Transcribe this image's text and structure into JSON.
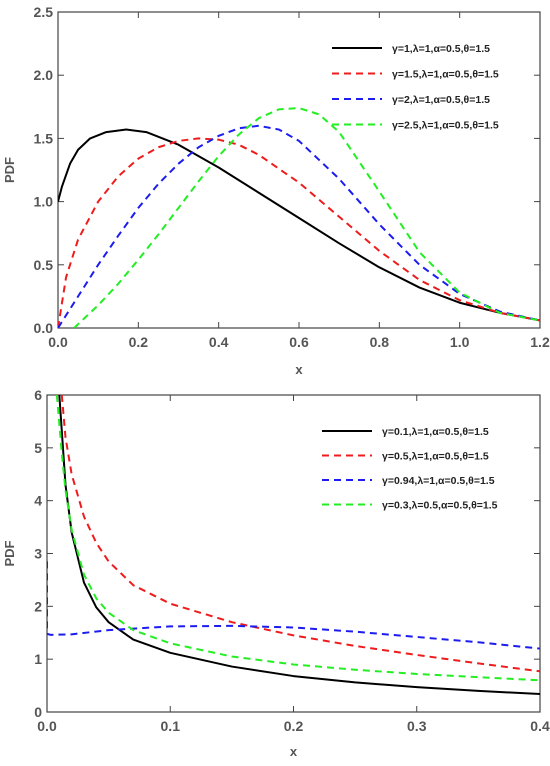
{
  "chart_data": [
    {
      "type": "line",
      "title": "",
      "xlabel": "x",
      "ylabel": "PDF",
      "xlim": [
        0,
        1.2
      ],
      "ylim": [
        0,
        2.5
      ],
      "xticks": [
        0.0,
        0.2,
        0.4,
        0.6,
        0.8,
        1.0,
        1.2
      ],
      "xtick_labels": [
        "0.0",
        "0.2",
        "0.4",
        "0.6",
        "0.8",
        "1.0",
        "1.2"
      ],
      "yticks": [
        0.0,
        0.5,
        1.0,
        1.5,
        2.0,
        2.5
      ],
      "ytick_labels": [
        "0.0",
        "0.5",
        "1.0",
        "1.5",
        "2.0",
        "2.5"
      ],
      "grid": false,
      "legend_position": "top-right",
      "series": [
        {
          "name": "γ=1,λ=1,α=0.5,θ=1.5",
          "color": "#000000",
          "dash": "solid",
          "x": [
            0.0,
            0.01,
            0.03,
            0.05,
            0.08,
            0.12,
            0.17,
            0.22,
            0.3,
            0.4,
            0.5,
            0.6,
            0.7,
            0.8,
            0.9,
            1.0,
            1.1,
            1.2
          ],
          "y": [
            1.0,
            1.12,
            1.3,
            1.41,
            1.5,
            1.55,
            1.57,
            1.55,
            1.45,
            1.27,
            1.07,
            0.87,
            0.67,
            0.48,
            0.32,
            0.2,
            0.12,
            0.06
          ]
        },
        {
          "name": "γ=1.5,λ=1,α=0.5,θ=1.5",
          "color": "#ee1c1c",
          "dash": "dashed",
          "x": [
            0.0,
            0.02,
            0.05,
            0.1,
            0.15,
            0.2,
            0.25,
            0.3,
            0.35,
            0.4,
            0.45,
            0.5,
            0.6,
            0.7,
            0.8,
            0.9,
            1.0,
            1.1,
            1.2
          ],
          "y": [
            0.0,
            0.4,
            0.7,
            1.0,
            1.2,
            1.34,
            1.43,
            1.48,
            1.5,
            1.49,
            1.45,
            1.37,
            1.15,
            0.88,
            0.61,
            0.38,
            0.22,
            0.12,
            0.06
          ]
        },
        {
          "name": "γ=2,λ=1,α=0.5,θ=1.5",
          "color": "#1c1cee",
          "dash": "dashed",
          "x": [
            0.0,
            0.05,
            0.1,
            0.15,
            0.2,
            0.25,
            0.3,
            0.35,
            0.4,
            0.45,
            0.5,
            0.55,
            0.6,
            0.7,
            0.8,
            0.9,
            1.0,
            1.1,
            1.2
          ],
          "y": [
            0.0,
            0.25,
            0.5,
            0.73,
            0.95,
            1.14,
            1.3,
            1.43,
            1.52,
            1.58,
            1.6,
            1.57,
            1.48,
            1.18,
            0.82,
            0.5,
            0.27,
            0.13,
            0.06
          ]
        },
        {
          "name": "γ=2.5,λ=1,α=0.5,θ=1.5",
          "color": "#22ee22",
          "dash": "dashed",
          "x": [
            0.04,
            0.1,
            0.15,
            0.2,
            0.25,
            0.3,
            0.35,
            0.4,
            0.45,
            0.5,
            0.55,
            0.6,
            0.65,
            0.7,
            0.8,
            0.9,
            1.0,
            1.1,
            1.2
          ],
          "y": [
            0.0,
            0.18,
            0.35,
            0.54,
            0.74,
            0.95,
            1.16,
            1.36,
            1.53,
            1.66,
            1.73,
            1.74,
            1.69,
            1.55,
            1.08,
            0.6,
            0.28,
            0.12,
            0.06
          ]
        }
      ]
    },
    {
      "type": "line",
      "title": "",
      "xlabel": "x",
      "ylabel": "PDF",
      "xlim": [
        0,
        0.4
      ],
      "ylim": [
        0,
        6
      ],
      "xticks": [
        0.0,
        0.1,
        0.2,
        0.3,
        0.4
      ],
      "xtick_labels": [
        "0.0",
        "0.1",
        "0.2",
        "0.3",
        "0.4"
      ],
      "yticks": [
        0,
        1,
        2,
        3,
        4,
        5,
        6
      ],
      "ytick_labels": [
        "0",
        "1",
        "2",
        "3",
        "4",
        "5",
        "6"
      ],
      "grid": false,
      "legend_position": "top-right",
      "series": [
        {
          "name": "γ=0.1,λ=1,α=0.5,θ=1.5",
          "color": "#000000",
          "dash": "solid",
          "x": [
            0.01,
            0.015,
            0.02,
            0.03,
            0.04,
            0.05,
            0.07,
            0.1,
            0.15,
            0.2,
            0.25,
            0.3,
            0.35,
            0.4
          ],
          "y": [
            6.0,
            4.3,
            3.4,
            2.45,
            1.98,
            1.7,
            1.37,
            1.12,
            0.86,
            0.68,
            0.56,
            0.47,
            0.4,
            0.34
          ]
        },
        {
          "name": "γ=0.5,λ=1,α=0.5,θ=1.5",
          "color": "#ee1c1c",
          "dash": "dashed",
          "x": [
            0.012,
            0.015,
            0.02,
            0.03,
            0.04,
            0.05,
            0.07,
            0.1,
            0.15,
            0.2,
            0.25,
            0.3,
            0.35,
            0.4
          ],
          "y": [
            6.0,
            5.2,
            4.5,
            3.7,
            3.2,
            2.85,
            2.4,
            2.05,
            1.7,
            1.45,
            1.25,
            1.08,
            0.92,
            0.77
          ]
        },
        {
          "name": "γ=0.94,λ=1,α=0.5,θ=1.5",
          "color": "#1c1cee",
          "dash": "dashed",
          "x": [
            0.0,
            0.0,
            0.003,
            0.02,
            0.05,
            0.1,
            0.15,
            0.2,
            0.25,
            0.3,
            0.35,
            0.4
          ],
          "y": [
            2.85,
            1.48,
            1.46,
            1.47,
            1.55,
            1.62,
            1.63,
            1.6,
            1.52,
            1.42,
            1.32,
            1.2
          ]
        },
        {
          "name": "γ=0.3,λ=0.5,α=0.5,θ=1.5",
          "color": "#22ee22",
          "dash": "dashed",
          "x": [
            0.008,
            0.012,
            0.015,
            0.02,
            0.03,
            0.04,
            0.05,
            0.07,
            0.1,
            0.15,
            0.2,
            0.25,
            0.3,
            0.35,
            0.4
          ],
          "y": [
            6.0,
            4.9,
            4.2,
            3.45,
            2.6,
            2.15,
            1.88,
            1.55,
            1.3,
            1.05,
            0.9,
            0.8,
            0.72,
            0.66,
            0.6
          ]
        }
      ]
    }
  ]
}
